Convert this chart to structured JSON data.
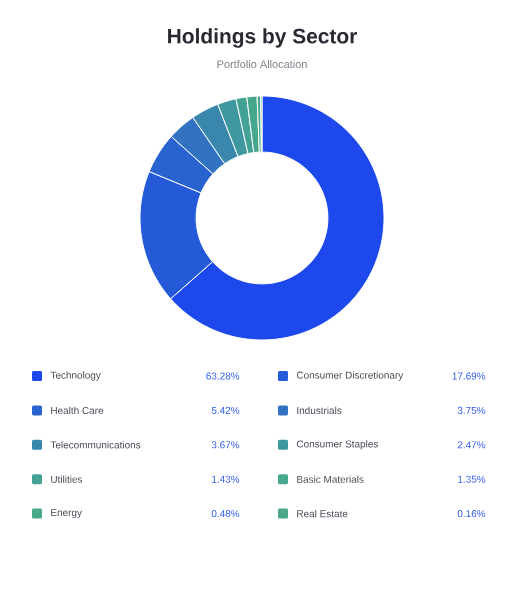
{
  "chart_data": {
    "type": "donut",
    "title": "Holdings by Sector",
    "subtitle": "Portfolio Allocation",
    "categories": [
      "Technology",
      "Consumer Discretionary",
      "Health Care",
      "Industrials",
      "Telecommunications",
      "Consumer Staples",
      "Utilities",
      "Basic Materials",
      "Energy",
      "Real Estate"
    ],
    "values": [
      63.28,
      17.69,
      5.42,
      3.75,
      3.67,
      2.47,
      1.43,
      1.35,
      0.48,
      0.16
    ],
    "value_labels": [
      "63.28%",
      "17.69%",
      "5.42%",
      "3.75%",
      "3.67%",
      "2.47%",
      "1.43%",
      "1.35%",
      "0.48%",
      "0.16%"
    ],
    "colors": [
      "#1d48eb",
      "#245ad8",
      "#2863cf",
      "#3173c0",
      "#3a87ae",
      "#3f979f",
      "#43a293",
      "#47a78d",
      "#4aa98a",
      "#4ca78b"
    ],
    "legend": "bottom"
  }
}
